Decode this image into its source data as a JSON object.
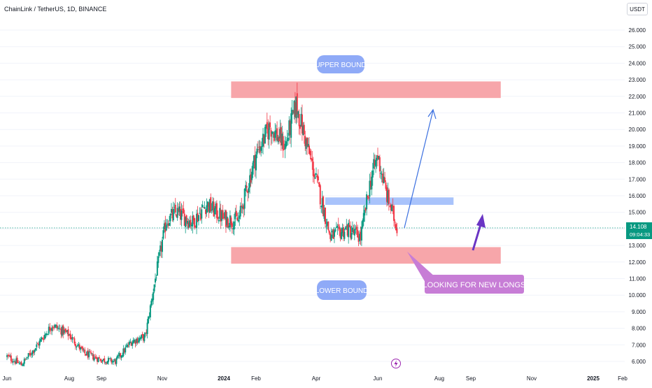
{
  "header": {
    "symbol_title": "ChainLink / TetherUS, 1D, BINANCE",
    "currency_button": "USDT"
  },
  "price_tag": {
    "price": "14.108",
    "countdown": "09:04:33",
    "color": "#089981"
  },
  "annotations": {
    "upper_bound_label": "UPPER BOUND",
    "lower_bound_label": "LOWER BOUND",
    "callout_label": "LOOKING FOR NEW LONGS"
  },
  "colors": {
    "up": "#089981",
    "down": "#f23645",
    "zone_red": "#f7a6aa",
    "zone_blue": "#a9c3fb",
    "label_blue": "#8faaf7",
    "callout_purple": "#c77dd6",
    "arrow_blue": "#3a6fe0",
    "arrow_purple": "#6a35c4"
  },
  "chart_data": {
    "type": "candlestick",
    "title": "ChainLink / TetherUS, 1D, BINANCE",
    "ylabel": "USDT",
    "ylim": [
      5.6,
      26.8
    ],
    "y_ticks": [
      "26.000",
      "25.000",
      "24.000",
      "23.000",
      "22.000",
      "21.000",
      "20.000",
      "19.000",
      "18.000",
      "17.000",
      "16.000",
      "15.000",
      "14.000",
      "13.000",
      "12.000",
      "11.000",
      "10.000",
      "9.000",
      "8.000",
      "7.000",
      "6.000"
    ],
    "x_ticks": [
      "Jun",
      "Aug",
      "Sep",
      "Nov",
      "2024",
      "Feb",
      "Apr",
      "Jun",
      "Aug",
      "Sep",
      "Nov",
      "2025",
      "Feb"
    ],
    "last_price": 14.108,
    "price_path": [
      {
        "date": "2023-06-01",
        "close": 6.3
      },
      {
        "date": "2023-06-15",
        "close": 5.8
      },
      {
        "date": "2023-07-01",
        "close": 7.0
      },
      {
        "date": "2023-07-15",
        "close": 8.2
      },
      {
        "date": "2023-08-01",
        "close": 7.6
      },
      {
        "date": "2023-08-15",
        "close": 6.5
      },
      {
        "date": "2023-09-01",
        "close": 6.1
      },
      {
        "date": "2023-09-15",
        "close": 6.0
      },
      {
        "date": "2023-10-01",
        "close": 7.2
      },
      {
        "date": "2023-10-15",
        "close": 7.5
      },
      {
        "date": "2023-10-25",
        "close": 11.0
      },
      {
        "date": "2023-11-05",
        "close": 14.5
      },
      {
        "date": "2023-11-15",
        "close": 15.0
      },
      {
        "date": "2023-12-01",
        "close": 14.4
      },
      {
        "date": "2023-12-15",
        "close": 15.5
      },
      {
        "date": "2024-01-01",
        "close": 14.6
      },
      {
        "date": "2024-01-15",
        "close": 14.5
      },
      {
        "date": "2024-02-01",
        "close": 18.5
      },
      {
        "date": "2024-02-15",
        "close": 20.2
      },
      {
        "date": "2024-03-01",
        "close": 19.0
      },
      {
        "date": "2024-03-12",
        "close": 21.5
      },
      {
        "date": "2024-03-25",
        "close": 18.5
      },
      {
        "date": "2024-04-05",
        "close": 16.0
      },
      {
        "date": "2024-04-15",
        "close": 13.5
      },
      {
        "date": "2024-05-01",
        "close": 14.0
      },
      {
        "date": "2024-05-15",
        "close": 13.5
      },
      {
        "date": "2024-05-25",
        "close": 17.0
      },
      {
        "date": "2024-06-01",
        "close": 18.4
      },
      {
        "date": "2024-06-10",
        "close": 16.0
      },
      {
        "date": "2024-06-20",
        "close": 14.1
      }
    ],
    "zones": [
      {
        "label": "UPPER BOUND",
        "y_low": 21.9,
        "y_high": 22.9,
        "from": "2024-01-08",
        "to": "2024-10-01"
      },
      {
        "label": "LOWER BOUND",
        "y_low": 11.9,
        "y_high": 12.9,
        "from": "2024-01-08",
        "to": "2024-10-01"
      },
      {
        "label": "",
        "y_low": 15.45,
        "y_high": 15.9,
        "from": "2024-04-10",
        "to": "2024-08-15"
      }
    ]
  }
}
